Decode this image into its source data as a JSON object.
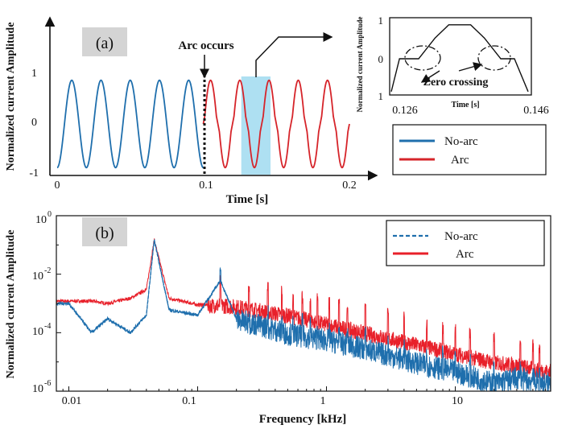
{
  "panel_a": {
    "tag": "(a)",
    "annotation": "Arc occurs",
    "ylabel": "Normalized current Amplitude",
    "xlabel": "Time [s]",
    "xticks": [
      "0",
      "0.1",
      "0.2"
    ],
    "yticks": [
      "1",
      "0",
      "-1"
    ],
    "legend": [
      "No-arc",
      "Arc"
    ],
    "inset": {
      "ylabel": "Normalized current Amplitude",
      "xlabel": "Time [s]",
      "xticks": [
        "0.126",
        "0.146"
      ],
      "yticks": [
        "1",
        "0",
        "1"
      ],
      "annotation": "Zero crossing"
    }
  },
  "panel_b": {
    "tag": "(b)",
    "ylabel": "Normalized current Amplitude",
    "xlabel": "Frequency [kHz]",
    "xticks": [
      "0.01",
      "0.1",
      "1",
      "10"
    ],
    "yticks": [
      "0",
      "-2",
      "-4",
      "-6"
    ],
    "ytick_base": "10",
    "legend": [
      "No-arc",
      "Arc"
    ]
  },
  "colors": {
    "no_arc": "#1f6fad",
    "arc": "#d6242a",
    "highlight": "#aee0f2",
    "tag_box": "#d4d4d4"
  },
  "chart_data": [
    {
      "type": "line",
      "panel": "(a)",
      "xlabel": "Time [s]",
      "ylabel": "Normalized current Amplitude",
      "xlim": [
        0,
        0.2
      ],
      "ylim": [
        -1,
        1
      ],
      "event": {
        "label": "Arc occurs",
        "x": 0.1
      },
      "highlight_window": [
        0.126,
        0.146
      ],
      "series": [
        {
          "name": "No-arc",
          "frequency_hz": 50,
          "amplitude": 0.92,
          "x_range": [
            0,
            0.1
          ],
          "shape": "sinusoid"
        },
        {
          "name": "Arc",
          "frequency_hz": 50,
          "amplitude": 0.92,
          "x_range": [
            0.1,
            0.2
          ],
          "shape": "sinusoid with flat shoulders near zero crossings"
        }
      ],
      "inset": {
        "xlim": [
          0.126,
          0.146
        ],
        "ylim": [
          -1,
          1
        ],
        "xlabel": "Time [s]",
        "annotation": "Zero crossing"
      },
      "legend_position": "right"
    },
    {
      "type": "line",
      "panel": "(b)",
      "xlabel": "Frequency [kHz]",
      "ylabel": "Normalized current Amplitude",
      "xscale": "log",
      "yscale": "log",
      "xlim": [
        0.008,
        55
      ],
      "ylim": [
        1e-06,
        1
      ],
      "legend_position": "top-right",
      "series": [
        {
          "name": "No-arc",
          "line_style": "dashed",
          "x": [
            0.01,
            0.015,
            0.02,
            0.03,
            0.04,
            0.046,
            0.06,
            0.1,
            0.15,
            0.2,
            0.3,
            0.5,
            1,
            2,
            5,
            10,
            20,
            30,
            50
          ],
          "y": [
            0.001,
            0.0001,
            0.0003,
            0.0001,
            0.0004,
            0.15,
            0.0006,
            0.0004,
            0.006,
            0.0003,
            0.0002,
            0.0001,
            6e-05,
            3e-05,
            1e-05,
            5e-06,
            2e-06,
            3e-06,
            2e-06
          ]
        },
        {
          "name": "Arc",
          "line_style": "solid",
          "x": [
            0.01,
            0.015,
            0.02,
            0.03,
            0.04,
            0.046,
            0.06,
            0.1,
            0.15,
            0.2,
            0.3,
            0.5,
            1,
            2,
            5,
            10,
            20,
            30,
            50
          ],
          "y": [
            0.0012,
            0.0012,
            0.001,
            0.0015,
            0.003,
            0.15,
            0.0015,
            0.0009,
            0.0009,
            0.0008,
            0.0006,
            0.0004,
            0.0002,
            0.0001,
            4e-05,
            2e-05,
            1e-05,
            8e-06,
            5e-06
          ]
        }
      ]
    }
  ]
}
